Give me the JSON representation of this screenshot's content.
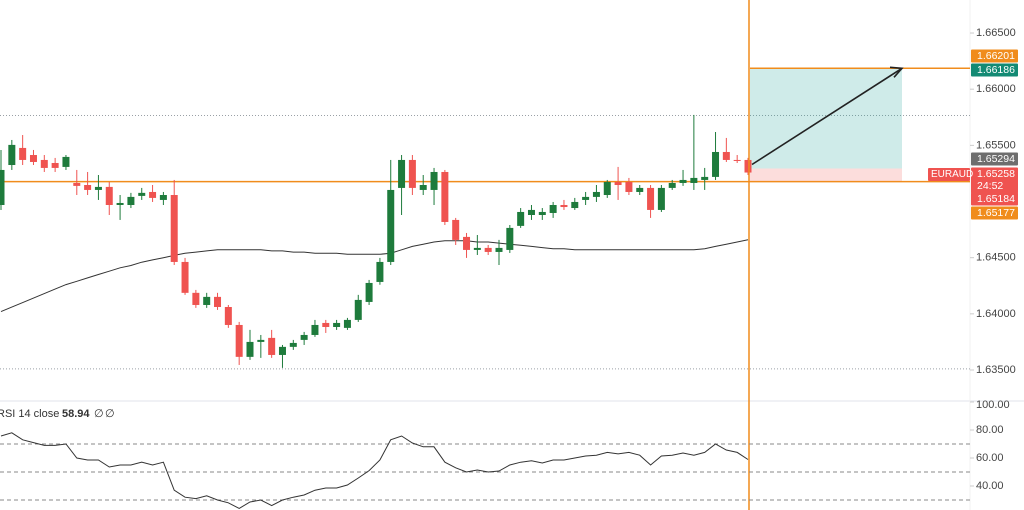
{
  "chart_data": {
    "type": "candlestick",
    "symbol": "EURAUD",
    "countdown": "24:52",
    "up_color": "#1e7b3c",
    "down_color": "#ef5350",
    "ylim": [
      1.63233,
      1.66794
    ],
    "yticks": [
      {
        "value": 1.665,
        "label": "1.66500"
      },
      {
        "value": 1.66,
        "label": "1.66000"
      },
      {
        "value": 1.655,
        "label": "1.65500"
      },
      {
        "value": 1.645,
        "label": "1.64500"
      },
      {
        "value": 1.64,
        "label": "1.64000"
      },
      {
        "value": 1.635,
        "label": "1.63500"
      }
    ],
    "dotted_levels": [
      1.65766,
      1.6351
    ],
    "open": [
      1.64969,
      1.65325,
      1.65477,
      1.65414,
      1.6537,
      1.65343,
      1.65308,
      1.65165,
      1.65147,
      1.65103,
      1.6513,
      1.64969,
      1.64969,
      1.6505,
      1.65085,
      1.65014,
      1.65058,
      1.64462,
      1.64187,
      1.64079,
      1.64151,
      1.64061,
      1.63901,
      1.63617,
      1.6375,
      1.63786,
      1.63634,
      1.63706,
      1.63768,
      1.63812,
      1.63919,
      1.63883,
      1.63875,
      1.63946,
      1.64106,
      1.64284,
      1.64462,
      1.65121,
      1.6537,
      1.65103,
      1.65103,
      1.65263,
      1.64836,
      1.64685,
      1.64569,
      1.64587,
      1.64551,
      1.64569,
      1.64783,
      1.6488,
      1.6488,
      1.64898,
      1.64969,
      1.64942,
      1.65014,
      1.65041,
      1.65058,
      1.65174,
      1.65174,
      1.65085,
      1.65121,
      1.64925,
      1.65121,
      1.65165,
      1.65165,
      1.65192,
      1.65219,
      1.65441,
      1.6537,
      1.6537
    ],
    "high": [
      1.65459,
      1.65548,
      1.65592,
      1.65459,
      1.65414,
      1.65388,
      1.65414,
      1.65281,
      1.65263,
      1.65236,
      1.65174,
      1.65058,
      1.65077,
      1.65121,
      1.65147,
      1.65085,
      1.65192,
      1.64498,
      1.64213,
      1.64187,
      1.64187,
      1.64079,
      1.63928,
      1.63857,
      1.63812,
      1.63857,
      1.63723,
      1.63768,
      1.63839,
      1.63946,
      1.63946,
      1.63946,
      1.63964,
      1.64169,
      1.64302,
      1.64498,
      1.6537,
      1.65414,
      1.65414,
      1.65236,
      1.65299,
      1.65281,
      1.64854,
      1.6472,
      1.64702,
      1.64613,
      1.64658,
      1.64791,
      1.64942,
      1.64969,
      1.64942,
      1.64996,
      1.65014,
      1.65032,
      1.65085,
      1.65147,
      1.65192,
      1.65308,
      1.6521,
      1.65147,
      1.65147,
      1.65147,
      1.65192,
      1.65281,
      1.65771,
      1.65299,
      1.65619,
      1.65566,
      1.65414,
      1.65388
    ],
    "low": [
      1.64925,
      1.65281,
      1.65325,
      1.65325,
      1.65263,
      1.65263,
      1.65281,
      1.65058,
      1.65058,
      1.65014,
      1.6488,
      1.64836,
      1.64942,
      1.65014,
      1.64996,
      1.64969,
      1.64435,
      1.64169,
      1.64053,
      1.64053,
      1.64035,
      1.63875,
      1.63545,
      1.6359,
      1.63608,
      1.63608,
      1.63519,
      1.63679,
      1.63723,
      1.63795,
      1.6383,
      1.63857,
      1.63857,
      1.63928,
      1.64079,
      1.64259,
      1.64435,
      1.6488,
      1.65058,
      1.65058,
      1.64969,
      1.64791,
      1.64613,
      1.64498,
      1.64524,
      1.64524,
      1.64435,
      1.64542,
      1.64765,
      1.64836,
      1.64836,
      1.64854,
      1.64925,
      1.64925,
      1.64969,
      1.64996,
      1.65032,
      1.65014,
      1.65058,
      1.65058,
      1.64854,
      1.64907,
      1.65103,
      1.65139,
      1.65103,
      1.65103,
      1.65192,
      1.65352,
      1.65343,
      1.65236
    ],
    "close": [
      1.65281,
      1.65504,
      1.6537,
      1.65352,
      1.65299,
      1.65299,
      1.65397,
      1.65139,
      1.65103,
      1.6513,
      1.64969,
      1.64987,
      1.65041,
      1.65077,
      1.65032,
      1.65058,
      1.64462,
      1.64187,
      1.64079,
      1.64151,
      1.64061,
      1.63901,
      1.63617,
      1.6375,
      1.63768,
      1.63634,
      1.63706,
      1.63741,
      1.63812,
      1.63901,
      1.63883,
      1.63919,
      1.63946,
      1.64124,
      1.64275,
      1.64462,
      1.65103,
      1.6537,
      1.65121,
      1.65147,
      1.65263,
      1.64818,
      1.64658,
      1.64569,
      1.64587,
      1.64551,
      1.64587,
      1.64765,
      1.64907,
      1.64925,
      1.64907,
      1.64969,
      1.64951,
      1.64996,
      1.65041,
      1.65085,
      1.65174,
      1.65147,
      1.65085,
      1.65121,
      1.64925,
      1.65121,
      1.65165,
      1.65192,
      1.6521,
      1.65219,
      1.65441,
      1.6537,
      1.65361,
      1.65258
    ],
    "ma": {
      "color": "#333333",
      "values": [
        1.6402,
        1.6406,
        1.641,
        1.6414,
        1.6418,
        1.6422,
        1.6426,
        1.6429,
        1.6432,
        1.6435,
        1.6438,
        1.6441,
        1.6443,
        1.6446,
        1.6448,
        1.645,
        1.6452,
        1.6454,
        1.6455,
        1.6456,
        1.6457,
        1.6457,
        1.6457,
        1.6457,
        1.6457,
        1.6456,
        1.6456,
        1.6455,
        1.6455,
        1.6454,
        1.6454,
        1.6454,
        1.6453,
        1.6453,
        1.6453,
        1.6453,
        1.6454,
        1.6457,
        1.646,
        1.6462,
        1.6464,
        1.6465,
        1.6465,
        1.6465,
        1.6464,
        1.6464,
        1.6463,
        1.6462,
        1.6461,
        1.646,
        1.6459,
        1.6458,
        1.6458,
        1.6457,
        1.6457,
        1.6457,
        1.6457,
        1.6457,
        1.6457,
        1.6457,
        1.6457,
        1.6457,
        1.6457,
        1.6457,
        1.6457,
        1.6458,
        1.646,
        1.6462,
        1.6464,
        1.6466
      ]
    },
    "position": {
      "target": 1.66186,
      "entry": 1.65294,
      "stop": 1.65177
    },
    "price_labels": [
      {
        "value": 1.66201,
        "color": "#f08c1c"
      },
      {
        "value": 1.66186,
        "color": "#138a74"
      },
      {
        "value": 1.65294,
        "color": "#6e6e6e"
      },
      {
        "value": 1.65258,
        "color": "#ef5350"
      },
      {
        "value": 1.65184,
        "color": "#ef5350"
      },
      {
        "value": 1.65177,
        "color": "#f08c1c"
      }
    ],
    "rsi": {
      "name": "RSI 14 close",
      "value_text": "58.94",
      "na_1": "∅",
      "na_2": "∅",
      "color": "#333333",
      "ylim": [
        22.86,
        100
      ],
      "yticks": [
        {
          "value": 100,
          "label": "100.00"
        },
        {
          "value": 80,
          "label": "80.00"
        },
        {
          "value": 60,
          "label": "60.00"
        },
        {
          "value": 40,
          "label": "40.00"
        }
      ],
      "levels": [
        70,
        50,
        30
      ],
      "values": [
        75.7,
        78,
        73,
        71,
        69,
        69,
        70,
        60,
        58.6,
        58.6,
        53.6,
        55,
        55,
        57,
        55,
        57,
        37,
        32,
        31,
        33,
        30,
        28,
        24,
        28.6,
        30,
        26,
        30,
        32,
        33.6,
        37,
        38.6,
        38.6,
        40.7,
        45.7,
        51,
        58.6,
        73,
        75.7,
        70.7,
        68,
        68,
        57,
        53,
        50,
        51.4,
        50,
        50.7,
        55,
        57,
        58,
        56.4,
        58.6,
        58.6,
        60,
        61.4,
        62,
        64,
        62.9,
        64,
        62,
        55,
        61.4,
        62,
        63.6,
        62,
        64,
        70,
        65.7,
        64,
        58.94
      ]
    }
  }
}
